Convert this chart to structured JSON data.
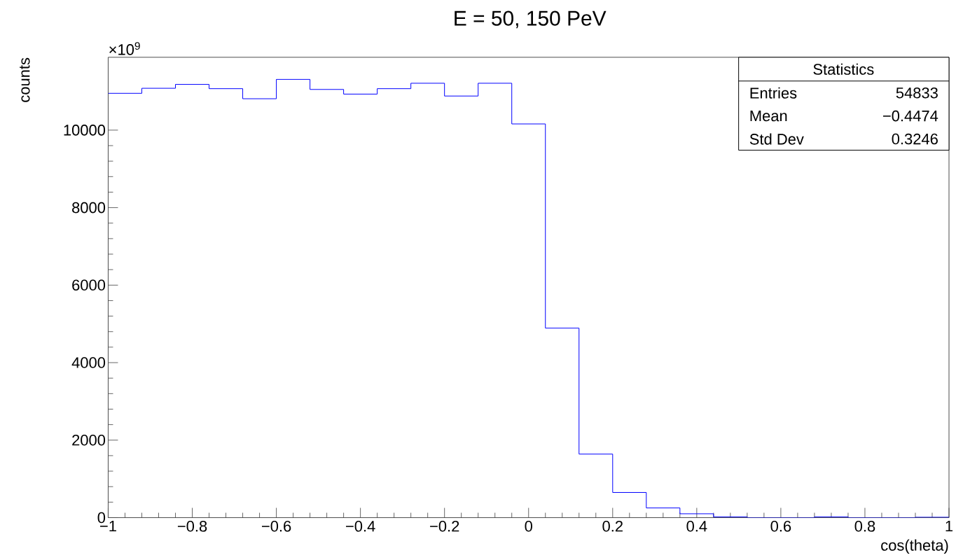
{
  "chart_data": {
    "type": "histogram",
    "title": "E = 50, 150 PeV",
    "xlabel": "cos(theta)",
    "ylabel": "counts",
    "bins": [
      -1,
      -0.92,
      -0.84,
      -0.76,
      -0.68,
      -0.6,
      -0.52,
      -0.44,
      -0.36,
      -0.28,
      -0.2,
      -0.12,
      -0.04,
      0.04,
      0.12,
      0.2,
      0.28,
      0.36,
      0.44,
      0.52,
      0.6,
      0.68,
      0.76,
      0.84,
      0.92,
      1
    ],
    "values": [
      10950,
      11080,
      11180,
      11070,
      10810,
      11310,
      11050,
      10930,
      11070,
      11210,
      10880,
      11210,
      10160,
      4890,
      1640,
      650,
      250,
      100,
      20,
      0,
      0,
      20,
      0,
      0,
      10
    ],
    "color": "#0000ff",
    "xlim": [
      -1,
      1
    ],
    "ylim": [
      0,
      11880
    ],
    "xticks": [
      {
        "value": -1,
        "label": "−1"
      },
      {
        "value": -0.8,
        "label": "−0.8"
      },
      {
        "value": -0.6,
        "label": "−0.6"
      },
      {
        "value": -0.4,
        "label": "−0.4"
      },
      {
        "value": -0.2,
        "label": "−0.2"
      },
      0,
      0.2,
      0.4,
      0.6,
      0.8,
      1
    ],
    "yticks": [
      0,
      2000,
      4000,
      6000,
      8000,
      10000
    ],
    "annotations": [
      "×10$^{9}$",
      "Statistics",
      "Entries",
      "54833",
      "Mean",
      "−0.4474",
      "Std Dev",
      "0.3246"
    ],
    "grid": false
  }
}
